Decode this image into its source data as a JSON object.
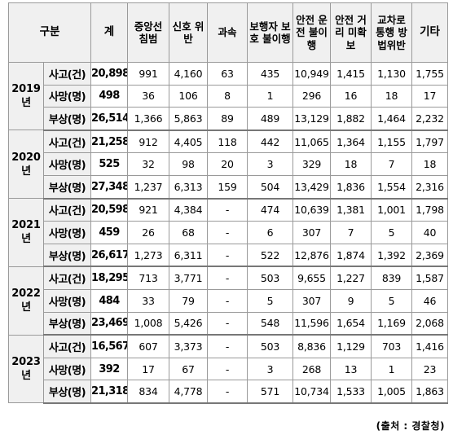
{
  "headers": {
    "category": "구분",
    "total": "계",
    "center_line": "중앙선 침범",
    "signal": "신호 위반",
    "speeding": "과속",
    "pedestrian": "보행자 보호 불이행",
    "safe_driving": "안전 운전 불이행",
    "safe_distance": "안전 거리 미확보",
    "intersection": "교차로 통행 방법위반",
    "other": "기타"
  },
  "years": [
    {
      "year": "2019",
      "year_suffix": "년",
      "rows": [
        {
          "kind": "사고(건)",
          "total": "20,898",
          "center_line": "991",
          "signal": "4,160",
          "speeding": "63",
          "pedestrian": "435",
          "safe_driving": "10,949",
          "safe_distance": "1,415",
          "intersection": "1,130",
          "other": "1,755"
        },
        {
          "kind": "사망(명)",
          "total": "498",
          "center_line": "36",
          "signal": "106",
          "speeding": "8",
          "pedestrian": "1",
          "safe_driving": "296",
          "safe_distance": "16",
          "intersection": "18",
          "other": "17"
        },
        {
          "kind": "부상(명)",
          "total": "26,514",
          "center_line": "1,366",
          "signal": "5,863",
          "speeding": "89",
          "pedestrian": "489",
          "safe_driving": "13,129",
          "safe_distance": "1,882",
          "intersection": "1,464",
          "other": "2,232"
        }
      ]
    },
    {
      "year": "2020",
      "year_suffix": "년",
      "rows": [
        {
          "kind": "사고(건)",
          "total": "21,258",
          "center_line": "912",
          "signal": "4,405",
          "speeding": "118",
          "pedestrian": "442",
          "safe_driving": "11,065",
          "safe_distance": "1,364",
          "intersection": "1,155",
          "other": "1,797"
        },
        {
          "kind": "사망(명)",
          "total": "525",
          "center_line": "32",
          "signal": "98",
          "speeding": "20",
          "pedestrian": "3",
          "safe_driving": "329",
          "safe_distance": "18",
          "intersection": "7",
          "other": "18"
        },
        {
          "kind": "부상(명)",
          "total": "27,348",
          "center_line": "1,237",
          "signal": "6,313",
          "speeding": "159",
          "pedestrian": "504",
          "safe_driving": "13,429",
          "safe_distance": "1,836",
          "intersection": "1,554",
          "other": "2,316"
        }
      ]
    },
    {
      "year": "2021",
      "year_suffix": "년",
      "rows": [
        {
          "kind": "사고(건)",
          "total": "20,598",
          "center_line": "921",
          "signal": "4,384",
          "speeding": "-",
          "pedestrian": "474",
          "safe_driving": "10,639",
          "safe_distance": "1,381",
          "intersection": "1,001",
          "other": "1,798"
        },
        {
          "kind": "사망(명)",
          "total": "459",
          "center_line": "26",
          "signal": "68",
          "speeding": "-",
          "pedestrian": "6",
          "safe_driving": "307",
          "safe_distance": "7",
          "intersection": "5",
          "other": "40"
        },
        {
          "kind": "부상(명)",
          "total": "26,617",
          "center_line": "1,273",
          "signal": "6,311",
          "speeding": "-",
          "pedestrian": "522",
          "safe_driving": "12,876",
          "safe_distance": "1,874",
          "intersection": "1,392",
          "other": "2,369"
        }
      ]
    },
    {
      "year": "2022",
      "year_suffix": "년",
      "rows": [
        {
          "kind": "사고(건)",
          "total": "18,295",
          "center_line": "713",
          "signal": "3,771",
          "speeding": "-",
          "pedestrian": "503",
          "safe_driving": "9,655",
          "safe_distance": "1,227",
          "intersection": "839",
          "other": "1,587"
        },
        {
          "kind": "사망(명)",
          "total": "484",
          "center_line": "33",
          "signal": "79",
          "speeding": "-",
          "pedestrian": "5",
          "safe_driving": "307",
          "safe_distance": "9",
          "intersection": "5",
          "other": "46"
        },
        {
          "kind": "부상(명)",
          "total": "23,469",
          "center_line": "1,008",
          "signal": "5,426",
          "speeding": "-",
          "pedestrian": "548",
          "safe_driving": "11,596",
          "safe_distance": "1,654",
          "intersection": "1,169",
          "other": "2,068"
        }
      ]
    },
    {
      "year": "2023",
      "year_suffix": "년",
      "rows": [
        {
          "kind": "사고(건)",
          "total": "16,567",
          "center_line": "607",
          "signal": "3,373",
          "speeding": "-",
          "pedestrian": "503",
          "safe_driving": "8,836",
          "safe_distance": "1,129",
          "intersection": "703",
          "other": "1,416"
        },
        {
          "kind": "사망(명)",
          "total": "392",
          "center_line": "17",
          "signal": "67",
          "speeding": "-",
          "pedestrian": "3",
          "safe_driving": "268",
          "safe_distance": "13",
          "intersection": "1",
          "other": "23"
        },
        {
          "kind": "부상(명)",
          "total": "21,318",
          "center_line": "834",
          "signal": "4,778",
          "speeding": "-",
          "pedestrian": "571",
          "safe_driving": "10,734",
          "safe_distance": "1,533",
          "intersection": "1,005",
          "other": "1,863"
        }
      ]
    }
  ],
  "source": "(출처 : 경찰청)"
}
